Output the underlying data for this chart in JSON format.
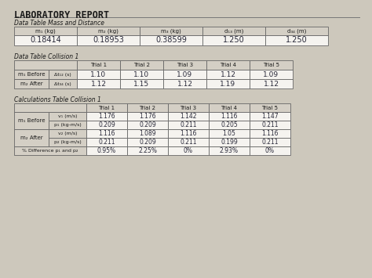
{
  "title": "LABORATORY REPORT",
  "bg_color": "#cdc8bc",
  "paper_color": "#e8e2d8",
  "text_color": "#1a1a1a",
  "handwritten_color": "#2a2a3a",
  "table1_label": "Data Table Mass and Distance",
  "table1_headers": [
    "m₁ (kg)",
    "m₂ (kg)",
    "m₃ (kg)",
    "d₁₃ (m)",
    "d₃₄ (m)"
  ],
  "table1_data": [
    [
      "0.18414",
      "0.18953",
      "0.38599",
      "1.250",
      "1.250"
    ]
  ],
  "table2_label": "Data Table Collision 1",
  "table2_row1_label": "m₁ Before",
  "table2_row1_sub": "Δt₁₂ (s)",
  "table2_row2_label": "m₂ After",
  "table2_row2_sub": "Δt₃₄ (s)",
  "table2_data": [
    [
      "1.10",
      "1.10",
      "1.09",
      "1.12",
      "1.09"
    ],
    [
      "1.12",
      "1.15",
      "1.12",
      "1.19",
      "1.12"
    ]
  ],
  "table3_label": "Calculations Table Collision 1",
  "table3_sections": [
    {
      "row_label": "m₁ Before",
      "rows": [
        {
          "sub": "v₁ (m/s)",
          "data": [
            "1.176",
            "1.176",
            "1.142",
            "1.116",
            "1.147"
          ]
        },
        {
          "sub": "p₁ (kg-m/s)",
          "data": [
            "0.209",
            "0.209",
            "0.211",
            "0.205",
            "0.211"
          ]
        }
      ]
    },
    {
      "row_label": "m₂ After",
      "rows": [
        {
          "sub": "v₂ (m/s)",
          "data": [
            "1.116",
            "1.089",
            "1.116",
            "1.05",
            "1.116"
          ]
        },
        {
          "sub": "p₂ (kg-m/s)",
          "data": [
            "0.211",
            "0.209",
            "0.211",
            "0.199",
            "0.211"
          ]
        }
      ]
    }
  ],
  "table3_last_row": {
    "label": "% Difference p₁ and p₂",
    "data": [
      "0.95%",
      "2.25%",
      "0%",
      "2.93%",
      "0%"
    ]
  }
}
